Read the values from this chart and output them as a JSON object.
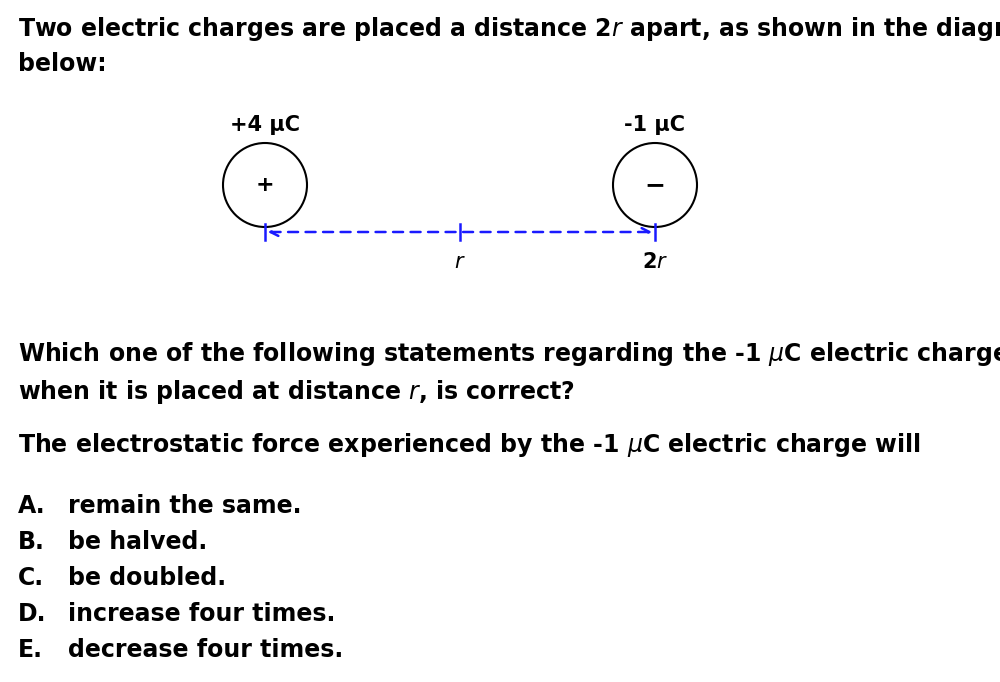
{
  "bg_color": "#ffffff",
  "text_color": "#000000",
  "arrow_color": "#1a1aff",
  "charge1_label": "+4 μC",
  "charge1_symbol": "+",
  "charge2_label": "-1 μC",
  "charge2_symbol": "−",
  "font_size_main": 17,
  "font_size_label": 15,
  "font_size_symbol": 16,
  "font_size_tick": 15,
  "options": [
    [
      "A.",
      "remain the same."
    ],
    [
      "B.",
      "be halved."
    ],
    [
      "C.",
      "be doubled."
    ],
    [
      "D.",
      "increase four times."
    ],
    [
      "E.",
      "decrease four times."
    ]
  ]
}
